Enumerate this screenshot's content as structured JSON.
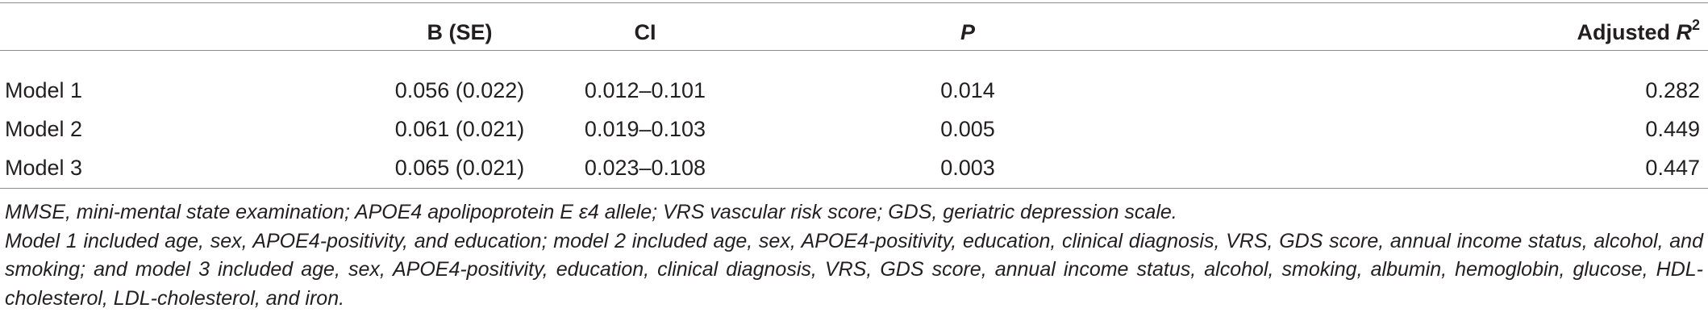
{
  "table": {
    "headers": {
      "col0": "",
      "col1": "B  (SE)",
      "col2": "CI",
      "col3": "P",
      "col4_main": "Adjusted ",
      "col4_italic": "R",
      "col4_sup": "2"
    },
    "rows": [
      {
        "label": "Model 1",
        "b_se": "0.056  (0.022)",
        "ci": "0.012–0.101",
        "p": "0.014",
        "adj_r2": "0.282"
      },
      {
        "label": "Model 2",
        "b_se": "0.061  (0.021)",
        "ci": "0.019–0.103",
        "p": "0.005",
        "adj_r2": "0.449"
      },
      {
        "label": "Model 3",
        "b_se": "0.065  (0.021)",
        "ci": "0.023–0.108",
        "p": "0.003",
        "adj_r2": "0.447"
      }
    ]
  },
  "notes": {
    "abbreviations": "MMSE, mini-mental state examination; APOE4 apolipoprotein E ε4 allele; VRS vascular risk score; GDS, geriatric depression scale.",
    "models": "Model 1 included age, sex, APOE4-positivity, and education; model 2 included age, sex, APOE4-positivity, education, clinical diagnosis, VRS, GDS score, annual income status, alcohol, and smoking; and model 3 included age, sex, APOE4-positivity, education, clinical diagnosis, VRS, GDS score, annual income status, alcohol, smoking, albumin, hemoglobin, glucose, HDL-cholesterol, LDL-cholesterol, and iron."
  }
}
